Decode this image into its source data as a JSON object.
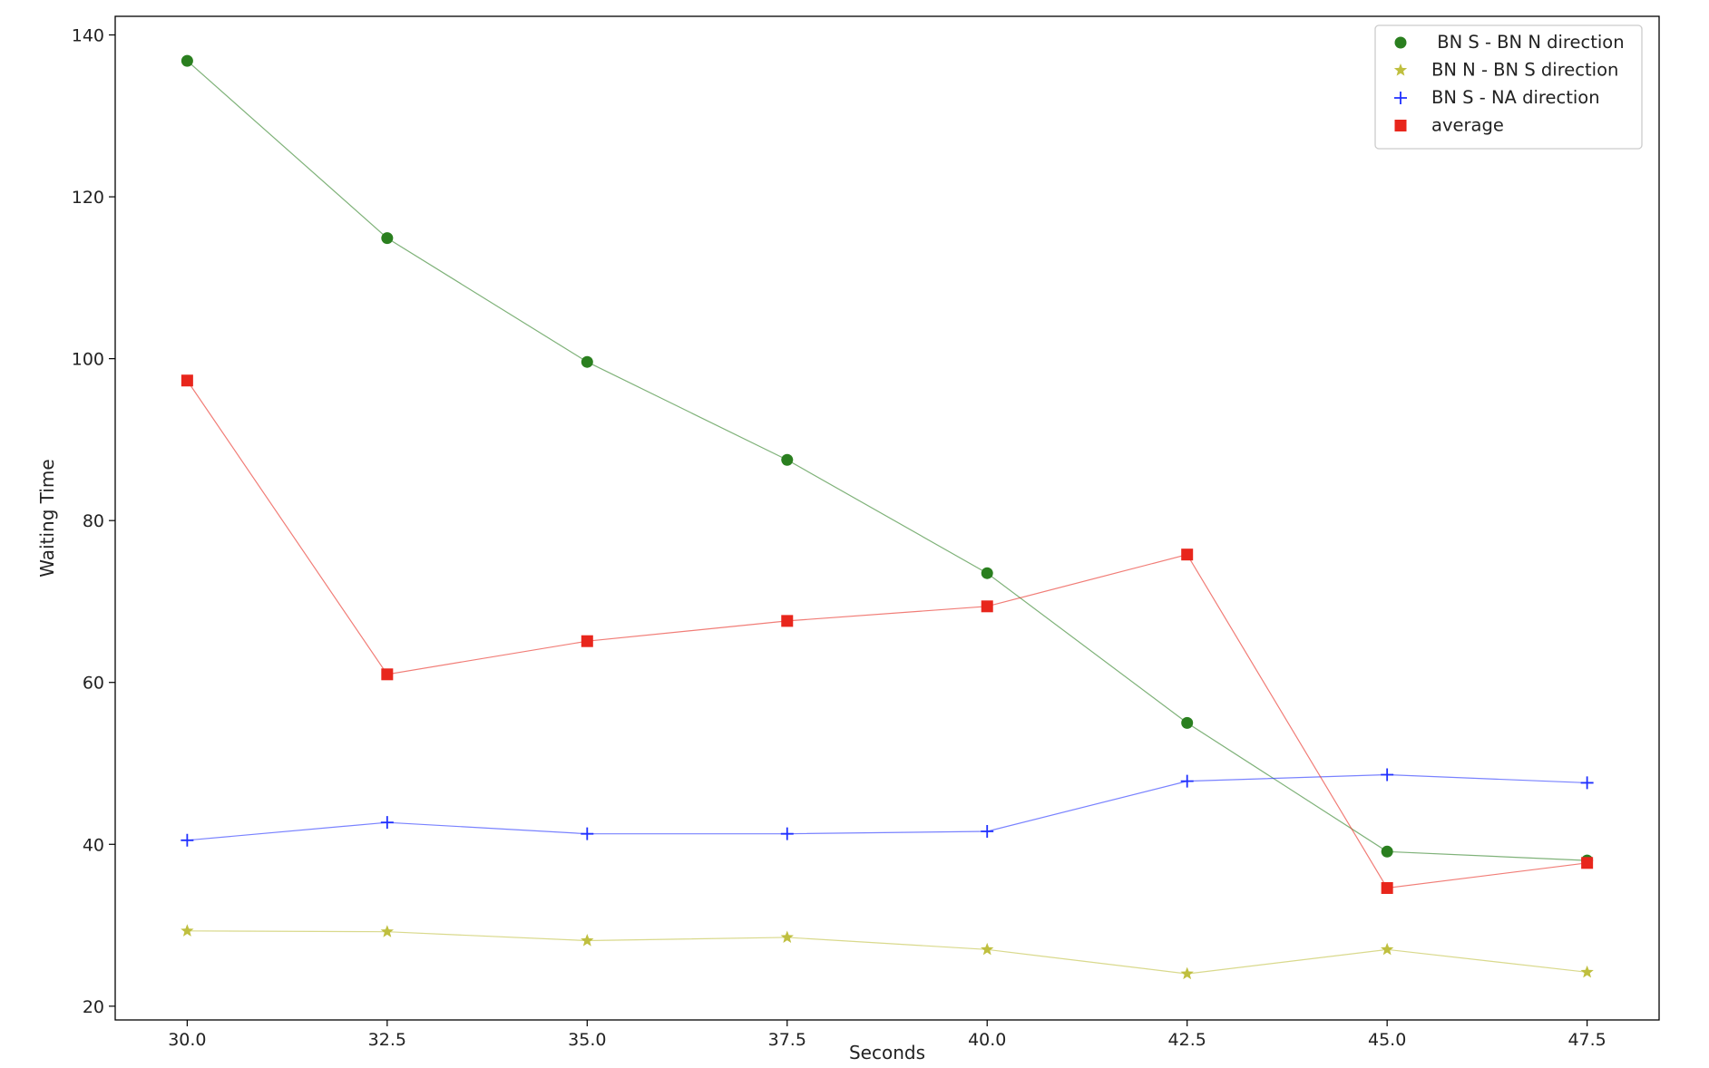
{
  "chart_data": {
    "type": "line",
    "title": "",
    "xlabel": "Seconds",
    "ylabel": "Waiting Time",
    "x": [
      30.0,
      32.5,
      35.0,
      37.5,
      40.0,
      42.5,
      45.0,
      47.5
    ],
    "xlim": [
      29.1,
      48.4
    ],
    "ylim": [
      18.3,
      142.3
    ],
    "xticks": [
      30.0,
      32.5,
      35.0,
      37.5,
      40.0,
      42.5,
      45.0,
      47.5
    ],
    "xtick_labels": [
      "30.0",
      "32.5",
      "35.0",
      "37.5",
      "40.0",
      "42.5",
      "45.0",
      "47.5"
    ],
    "yticks": [
      20,
      40,
      60,
      80,
      100,
      120,
      140
    ],
    "ytick_labels": [
      "20",
      "40",
      "60",
      "80",
      "100",
      "120",
      "140"
    ],
    "grid": false,
    "legend_position": "top-right",
    "series": [
      {
        "name": " BN S - BN N direction",
        "color": "#2a7f1f",
        "marker": "circle",
        "values": [
          136.8,
          114.9,
          99.6,
          87.5,
          73.5,
          55.0,
          39.1,
          38.0
        ]
      },
      {
        "name": "BN N - BN S direction",
        "color": "#bfbf3f",
        "marker": "star",
        "values": [
          29.3,
          29.2,
          28.1,
          28.5,
          27.0,
          24.0,
          27.0,
          24.2
        ]
      },
      {
        "name": "BN S - NA direction",
        "color": "#1f2fff",
        "marker": "plus",
        "values": [
          40.5,
          42.7,
          41.3,
          41.3,
          41.6,
          47.8,
          48.6,
          47.6
        ]
      },
      {
        "name": "average",
        "color": "#e8261c",
        "marker": "square",
        "values": [
          97.3,
          61.0,
          65.1,
          67.6,
          69.4,
          75.8,
          34.6,
          37.7
        ]
      }
    ]
  }
}
